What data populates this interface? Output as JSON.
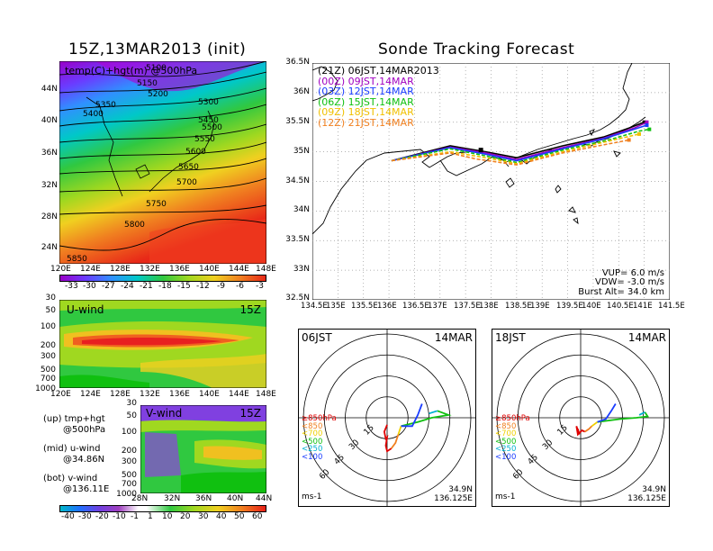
{
  "left_title": "15Z,13MAR2013 (init)",
  "right_title": "Sonde Tracking Forecast",
  "temp_panel": {
    "label": "temp(C)+hgt(m) @500hPa",
    "lat_ticks": [
      "44N",
      "40N",
      "36N",
      "32N",
      "28N",
      "24N"
    ],
    "lon_ticks": [
      "120E",
      "124E",
      "128E",
      "132E",
      "136E",
      "140E",
      "144E",
      "148E"
    ],
    "contour_labels": [
      "5100",
      "5150",
      "5200",
      "5300",
      "5350",
      "5400",
      "5450",
      "5500",
      "5550",
      "5600",
      "5650",
      "5700",
      "5750",
      "5800",
      "5850"
    ],
    "colorbar_ticks": [
      "-33",
      "-30",
      "-27",
      "-24",
      "-21",
      "-18",
      "-15",
      "-12",
      "-9",
      "-6",
      "-3"
    ]
  },
  "uwind_panel": {
    "label": "U-wind",
    "time": "15Z",
    "p_ticks": [
      "30",
      "50",
      "100",
      "200",
      "300",
      "500",
      "700",
      "1000"
    ],
    "lon_ticks": [
      "120E",
      "124E",
      "128E",
      "132E",
      "136E",
      "140E",
      "144E",
      "148E"
    ]
  },
  "vwind_panel": {
    "label": "V-wind",
    "time": "15Z",
    "p_ticks": [
      "30",
      "50",
      "100",
      "200",
      "300",
      "500",
      "700",
      "1000"
    ],
    "lat_ticks": [
      "28N",
      "32N",
      "36N",
      "40N",
      "44N"
    ]
  },
  "side_notes": {
    "up1": "(up) tmp+hgt",
    "up2": "@500hPa",
    "mid1": "(mid) u-wind",
    "mid2": "@34.86N",
    "bot1": "(bot) v-wind",
    "bot2": "@136.11E"
  },
  "wind_colorbar_ticks": [
    "-40",
    "-30",
    "-20",
    "-10",
    "-1",
    "1",
    "10",
    "20",
    "30",
    "40",
    "50",
    "60"
  ],
  "track_panel": {
    "lat_ticks": [
      "36.5N",
      "36N",
      "35.5N",
      "35N",
      "34.5N",
      "34N",
      "33.5N",
      "33N",
      "32.5N"
    ],
    "lon_ticks": [
      "134.5E",
      "135E",
      "135.5E",
      "136E",
      "136.5E",
      "137E",
      "137.5E",
      "138E",
      "138.5E",
      "139E",
      "139.5E",
      "140E",
      "140.5E",
      "141E",
      "141.5E"
    ],
    "legend": [
      {
        "code": "(21Z)",
        "text": "06JST,14MAR2013",
        "color": "#000000"
      },
      {
        "code": "(00Z)",
        "text": "09JST,14MAR",
        "color": "#a000c0"
      },
      {
        "code": "(03Z)",
        "text": "12JST,14MAR",
        "color": "#1a3cff"
      },
      {
        "code": "(06Z)",
        "text": "15JST,14MAR",
        "color": "#10c010"
      },
      {
        "code": "(09Z)",
        "text": "18JST,14MAR",
        "color": "#f0c000"
      },
      {
        "code": "(12Z)",
        "text": "21JST,14MAR",
        "color": "#f08020"
      }
    ],
    "params": {
      "vup": "VUP=  6.0  m/s",
      "vdw": "VDW= -3.0  m/s",
      "burst": "Burst Alt= 34.0  km"
    }
  },
  "hodo_left": {
    "time": "06JST",
    "date": "14MAR",
    "ring_labels": [
      "15",
      "30",
      "45",
      "60"
    ],
    "legend": [
      {
        "text": "≥850hPa",
        "color": "#e00000"
      },
      {
        "text": "<850",
        "color": "#f08020"
      },
      {
        "text": "<700",
        "color": "#f0d000"
      },
      {
        "text": "<500",
        "color": "#10c010"
      },
      {
        "text": "<250",
        "color": "#00b0d0"
      },
      {
        "text": "<100",
        "color": "#1a3cff"
      }
    ],
    "unit": "ms-1",
    "lat": "34.9N",
    "lon": "136.125E"
  },
  "hodo_right": {
    "time": "18JST",
    "date": "14MAR",
    "ring_labels": [
      "15",
      "30",
      "45",
      "60"
    ],
    "legend": [
      {
        "text": "≥850hPa",
        "color": "#e00000"
      },
      {
        "text": "<850",
        "color": "#f08020"
      },
      {
        "text": "<700",
        "color": "#f0d000"
      },
      {
        "text": "<500",
        "color": "#10c010"
      },
      {
        "text": "<250",
        "color": "#00b0d0"
      },
      {
        "text": "<100",
        "color": "#1a3cff"
      }
    ],
    "unit": "ms-1",
    "lat": "34.9N",
    "lon": "136.125E"
  },
  "chart_data": [
    {
      "type": "line",
      "title": "Sonde Tracking Forecast",
      "xlabel": "",
      "ylabel": "",
      "xlim": [
        134.5,
        141.5
      ],
      "ylim": [
        32.5,
        36.5
      ],
      "series": [
        {
          "name": "(21Z) 06JST,14MAR2013",
          "color": "#000000",
          "x": [
            136.05,
            137.2,
            137.9,
            138.5,
            139.4,
            140.2,
            140.7,
            141.0
          ],
          "y": [
            34.85,
            35.1,
            35.0,
            34.9,
            35.1,
            35.25,
            35.4,
            35.5
          ]
        },
        {
          "name": "(00Z) 09JST,14MAR",
          "color": "#a000c0",
          "x": [
            136.05,
            137.2,
            137.9,
            138.5,
            139.4,
            140.2,
            140.8,
            141.05
          ],
          "y": [
            34.85,
            35.08,
            34.98,
            34.87,
            35.07,
            35.23,
            35.4,
            35.5
          ]
        },
        {
          "name": "(03Z) 12JST,14MAR",
          "color": "#1a3cff",
          "x": [
            136.05,
            137.2,
            137.9,
            138.5,
            139.4,
            140.2,
            140.8,
            141.05
          ],
          "y": [
            34.85,
            35.07,
            34.96,
            34.85,
            35.05,
            35.22,
            35.38,
            35.45
          ]
        },
        {
          "name": "(06Z) 15JST,14MAR",
          "color": "#10c010",
          "x": [
            136.05,
            137.2,
            137.9,
            138.5,
            139.4,
            140.3,
            140.9,
            141.1
          ],
          "y": [
            34.85,
            35.05,
            34.93,
            34.82,
            35.03,
            35.2,
            35.35,
            35.38
          ]
        },
        {
          "name": "(09Z) 18JST,14MAR",
          "color": "#f0c000",
          "x": [
            136.05,
            137.2,
            137.9,
            138.5,
            139.4,
            140.3,
            140.9
          ],
          "y": [
            34.85,
            35.0,
            34.9,
            34.8,
            35.0,
            35.18,
            35.3
          ]
        },
        {
          "name": "(12Z) 21JST,14MAR",
          "color": "#f08020",
          "x": [
            136.05,
            137.2,
            137.7,
            138.5,
            139.4,
            140.1,
            140.7
          ],
          "y": [
            34.85,
            34.98,
            34.88,
            34.78,
            34.98,
            35.1,
            35.2
          ]
        }
      ]
    },
    {
      "type": "line",
      "title": "06JST 14MAR",
      "xlabel": "",
      "ylabel": "",
      "series": [
        {
          "name": "≥850hPa",
          "color": "#e00000",
          "u": [
            0,
            -2,
            -1,
            0,
            -1,
            0,
            3
          ],
          "v": [
            -5,
            -10,
            -15,
            -14,
            -20,
            -24,
            -22
          ]
        },
        {
          "name": "<850",
          "color": "#f08020",
          "u": [
            3,
            6,
            8
          ],
          "v": [
            -22,
            -18,
            -12
          ]
        },
        {
          "name": "<700",
          "color": "#f0d000",
          "u": [
            8,
            10
          ],
          "v": [
            -12,
            -6
          ]
        },
        {
          "name": "<500",
          "color": "#10c010",
          "u": [
            10,
            22,
            32,
            44,
            36
          ],
          "v": [
            -6,
            -3,
            0,
            2,
            5
          ]
        },
        {
          "name": "<250",
          "color": "#00b0d0",
          "u": [
            36,
            30
          ],
          "v": [
            5,
            3
          ]
        },
        {
          "name": "<100",
          "color": "#1a3cff",
          "u": [
            10,
            18,
            22,
            25
          ],
          "v": [
            -6,
            -6,
            2,
            10
          ]
        }
      ]
    },
    {
      "type": "line",
      "title": "18JST 14MAR",
      "xlabel": "",
      "ylabel": "",
      "series": [
        {
          "name": "≥850hPa",
          "color": "#e00000",
          "u": [
            -2,
            -1,
            -3,
            -2,
            1,
            3
          ],
          "v": [
            -8,
            -12,
            -6,
            -12,
            -9,
            -10
          ]
        },
        {
          "name": "<850",
          "color": "#f08020",
          "u": [
            3,
            6,
            8
          ],
          "v": [
            -10,
            -8,
            -6
          ]
        },
        {
          "name": "<700",
          "color": "#f0d000",
          "u": [
            8,
            12
          ],
          "v": [
            -6,
            -3
          ]
        },
        {
          "name": "<500",
          "color": "#10c010",
          "u": [
            12,
            28,
            40,
            48,
            46
          ],
          "v": [
            -3,
            -1,
            0,
            1,
            4
          ]
        },
        {
          "name": "<250",
          "color": "#00b0d0",
          "u": [
            46,
            42
          ],
          "v": [
            4,
            2
          ]
        },
        {
          "name": "<100",
          "color": "#1a3cff",
          "u": [
            12,
            18,
            22,
            25
          ],
          "v": [
            -3,
            -1,
            5,
            10
          ]
        }
      ]
    }
  ]
}
